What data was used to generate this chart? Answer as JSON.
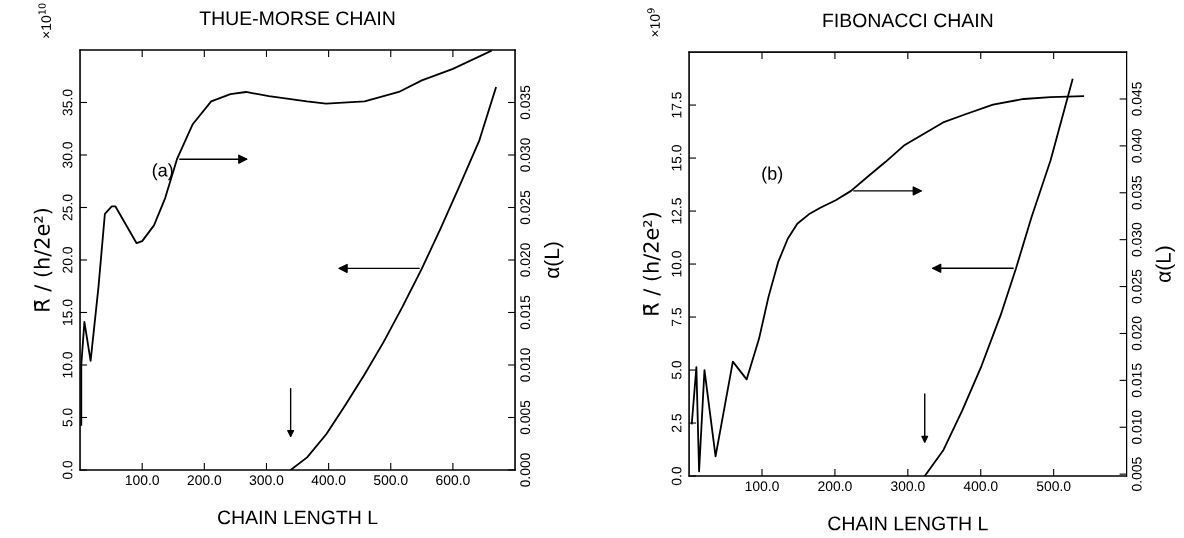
{
  "chart_data": [
    {
      "type": "line",
      "title": "THUE-MORSE CHAIN",
      "xlabel": "CHAIN LENGTH L",
      "ylabel": "R̄ / (h/2e²)",
      "y2label": "α(L)",
      "annotations": [
        "(a)",
        "×10$^{10}$"
      ],
      "series": [
        {
          "color": "#000000",
          "axis": "y2",
          "x": [
            2,
            2,
            7,
            17,
            29.6,
            40,
            51,
            57,
            91,
            100,
            119,
            137,
            156,
            181,
            211,
            242,
            267,
            304,
            365,
            396,
            458,
            513,
            550,
            600,
            661
          ],
          "values": [
            0.0043,
            0.01,
            0.0141,
            0.0104,
            0.0174,
            0.0244,
            0.0251,
            0.0251,
            0.0216,
            0.0218,
            0.0233,
            0.0259,
            0.0296,
            0.0329,
            0.0351,
            0.0358,
            0.036,
            0.0356,
            0.0351,
            0.0349,
            0.0351,
            0.036,
            0.0371,
            0.0382,
            0.0399
          ]
        },
        {
          "color": "#000000",
          "x": [
            338.9,
            365.4,
            396.2,
            427.0,
            457.8,
            488.6,
            519.4,
            550.2,
            581.0,
            611.8,
            642.6,
            669.1
          ],
          "values": [
            0,
            1.2,
            3.4,
            6.2,
            9.1,
            12.2,
            15.6,
            19.2,
            23.1,
            27.2,
            31.4,
            36.4
          ]
        }
      ],
      "xlim": [
        0,
        700
      ],
      "ylim": [
        0,
        40
      ],
      "y2lim": [
        0,
        0.04
      ],
      "xticks": [
        {
          "value": 100,
          "label": "100.0"
        },
        {
          "value": 200,
          "label": "200.0"
        },
        {
          "value": 300,
          "label": "300.0"
        },
        {
          "value": 400,
          "label": "400.0"
        },
        {
          "value": 500,
          "label": "500.0"
        },
        {
          "value": 600,
          "label": "600.0"
        }
      ],
      "yticks": [
        {
          "value": 0,
          "label": "0.0"
        },
        {
          "value": 5,
          "label": "5.0"
        },
        {
          "value": 10,
          "label": "10.0"
        },
        {
          "value": 15,
          "label": "15.0"
        },
        {
          "value": 20,
          "label": "20.0"
        },
        {
          "value": 25,
          "label": "25.0"
        },
        {
          "value": 30,
          "label": "30.0"
        },
        {
          "value": 35,
          "label": "35.0"
        }
      ],
      "y2ticks": [
        {
          "value": 0,
          "label": "0.000"
        },
        0.005,
        {
          "value": 0.01,
          "label": "0.010"
        },
        0.015,
        {
          "value": 0.02,
          "label": "0.020"
        },
        0.025,
        {
          "value": 0.03,
          "label": "0.030"
        },
        0.035
      ],
      "grid": false
    },
    {
      "type": "line",
      "title": "FIBONACCI CHAIN",
      "xlabel": "CHAIN LENGTH L",
      "ylabel": "R̄ / (h/2e²)",
      "y2label": "α(L)",
      "annotations": [
        "(b)",
        "×10$^{9}$"
      ],
      "series": [
        {
          "color": "#000000",
          "axis": "y2",
          "x": [
            3.7,
            10.0,
            13.7,
            21.1,
            36.3,
            60.0,
            78.9,
            95.8,
            108.9,
            122.1,
            135.3,
            148.4,
            164.2,
            180.0,
            201.1,
            222.1,
            243.2,
            269.5,
            295.8,
            322.1,
            348.4,
            380.0,
            416.8,
            458.9,
            495.8,
            540.5
          ],
          "values": [
            0.0104,
            0.0164,
            0.0053,
            0.0161,
            0.0069,
            0.017,
            0.0151,
            0.0194,
            0.0239,
            0.0276,
            0.0301,
            0.0317,
            0.0327,
            0.0334,
            0.0342,
            0.0352,
            0.0366,
            0.0383,
            0.0401,
            0.0413,
            0.0425,
            0.0434,
            0.0444,
            0.045,
            0.0452,
            0.0453
          ]
        },
        {
          "color": "#000000",
          "x": [
            323.2,
            348.4,
            374.7,
            401.1,
            427.4,
            448.4,
            469.5,
            495.8,
            525.8
          ],
          "values": [
            0,
            1.2,
            3.1,
            5.2,
            7.6,
            9.8,
            12.2,
            14.9,
            18.7
          ]
        }
      ],
      "xlim": [
        0,
        600
      ],
      "ylim": [
        0,
        20
      ],
      "y2lim": [
        0.0048,
        0.05
      ],
      "xticks": [
        {
          "value": 100,
          "label": "100.0"
        },
        {
          "value": 200,
          "label": "200.0"
        },
        {
          "value": 300,
          "label": "300.0"
        },
        {
          "value": 400,
          "label": "400.0"
        },
        {
          "value": 500,
          "label": "500.0"
        }
      ],
      "yticks": [
        {
          "value": 0,
          "label": "0.0"
        },
        2.5,
        {
          "value": 5,
          "label": "5.0"
        },
        7.5,
        {
          "value": 10,
          "label": "10.0"
        },
        12.5,
        {
          "value": 15,
          "label": "15.0"
        },
        17.5
      ],
      "y2ticks": [
        0.005,
        {
          "value": 0.01,
          "label": "0.010"
        },
        0.015,
        {
          "value": 0.02,
          "label": "0.020"
        },
        0.025,
        {
          "value": 0.03,
          "label": "0.030"
        },
        0.035,
        {
          "value": 0.04,
          "label": "0.040"
        },
        0.045
      ],
      "grid": false
    }
  ]
}
